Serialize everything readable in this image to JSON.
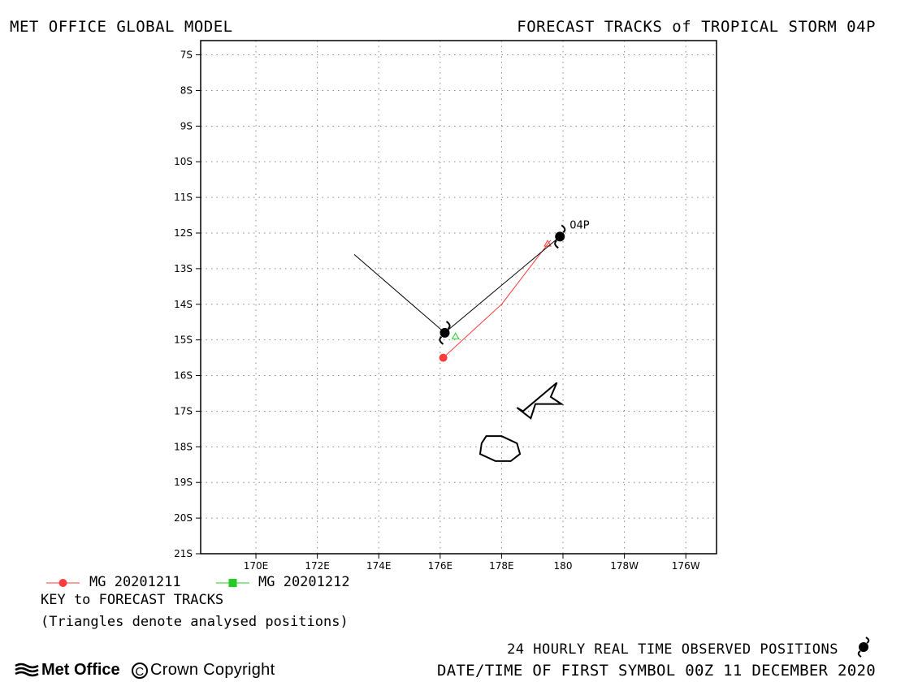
{
  "header": {
    "model": "MET OFFICE GLOBAL MODEL",
    "title": "FORECAST TRACKS of TROPICAL STORM 04P"
  },
  "chart_data": {
    "type": "map",
    "lat_ticks": [
      "7S",
      "8S",
      "9S",
      "10S",
      "11S",
      "12S",
      "13S",
      "14S",
      "15S",
      "16S",
      "17S",
      "18S",
      "19S",
      "20S",
      "21S"
    ],
    "lon_ticks": [
      "170E",
      "172E",
      "174E",
      "176E",
      "178E",
      "180",
      "178W",
      "176W"
    ],
    "lat_range": [
      -21,
      -6.6
    ],
    "lon_range_east": [
      168.2,
      185.0
    ],
    "grid": "dotted",
    "storm": {
      "name": "04P",
      "observed_positions": [
        {
          "lon": 179.9,
          "lat": -12.1
        },
        {
          "lon": 176.15,
          "lat": -14.8
        }
      ]
    },
    "tracks": [
      {
        "name": "MG 20201211",
        "color": "#ff3b3b",
        "marker": "circle",
        "points": [
          {
            "lon": 179.6,
            "lat": -12.2
          },
          {
            "lon": 178.0,
            "lat": -14.0
          },
          {
            "lon": 176.1,
            "lat": -15.5
          }
        ],
        "start_triangle": {
          "lon": 179.5,
          "lat": -12.3
        }
      },
      {
        "name": "MG 20201212",
        "color": "#22cc22",
        "marker": "square",
        "points": [],
        "start_triangle": {
          "lon": 176.5,
          "lat": -14.9
        }
      },
      {
        "name": "observed",
        "color": "#000000",
        "points": [
          {
            "lon": 173.2,
            "lat": -12.6
          },
          {
            "lon": 176.15,
            "lat": -14.8
          },
          {
            "lon": 179.9,
            "lat": -12.1
          }
        ]
      }
    ],
    "land_outlines": [
      [
        {
          "lon": 178.7,
          "lat": -17.0
        },
        {
          "lon": 179.8,
          "lat": -16.2
        },
        {
          "lon": 179.6,
          "lat": -16.6
        },
        {
          "lon": 179.95,
          "lat": -16.8
        },
        {
          "lon": 179.1,
          "lat": -16.8
        },
        {
          "lon": 178.95,
          "lat": -17.2
        },
        {
          "lon": 178.5,
          "lat": -16.9
        }
      ],
      [
        {
          "lon": 177.5,
          "lat": -17.7
        },
        {
          "lon": 178.0,
          "lat": -17.7
        },
        {
          "lon": 178.5,
          "lat": -17.9
        },
        {
          "lon": 178.6,
          "lat": -18.2
        },
        {
          "lon": 178.3,
          "lat": -18.4
        },
        {
          "lon": 177.8,
          "lat": -18.4
        },
        {
          "lon": 177.3,
          "lat": -18.2
        },
        {
          "lon": 177.35,
          "lat": -17.9
        }
      ]
    ]
  },
  "legend": {
    "entries": [
      {
        "label": "MG 20201211",
        "color": "#ff3b3b"
      },
      {
        "label": "MG 20201212",
        "color": "#22cc22"
      }
    ],
    "key_title": "KEY to FORECAST TRACKS",
    "key_note": "(Triangles denote analysed positions)"
  },
  "footer": {
    "brand": "Met Office",
    "copyright": "Crown Copyright",
    "observed_label": "24 HOURLY REAL TIME OBSERVED POSITIONS",
    "datetime": "DATE/TIME OF FIRST SYMBOL 00Z 11 DECEMBER 2020"
  }
}
